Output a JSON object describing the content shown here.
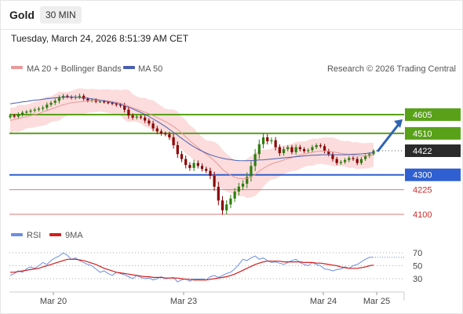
{
  "header": {
    "symbol": "Gold",
    "timeframe": "30 MIN",
    "datetime": "Tuesday, March 24, 2026 8:51:39 AM CET"
  },
  "legend": {
    "ma20_label": "MA 20 + Bollinger Bands",
    "ma50_label": "MA 50",
    "credit": "Research © 2026 Trading Central"
  },
  "rsi_legend": {
    "rsi_label": "RSI",
    "ma_label": "9MA"
  },
  "colors": {
    "up_candle": "#2e7d0e",
    "down_candle": "#8b0000",
    "bollinger_fill": "#fcd6d6",
    "ma20": "#e89a9a",
    "ma50": "#4a5fb0",
    "green_level": "#5aa11a",
    "blue_level": "#2f5fd0",
    "red_level": "#e07a7a",
    "current_price": "#2a2a2a",
    "arrow": "#2f64b4",
    "rsi": "#6b8ee0",
    "rsi_ma": "#d21e1e"
  },
  "chart_data": [
    {
      "type": "candlestick",
      "x_labels": [
        "Mar 20",
        "Mar 23",
        "Mar 24",
        "Mar 25"
      ],
      "levels": [
        {
          "value": 4605,
          "label": "4605",
          "style": "green-target"
        },
        {
          "value": 4510,
          "label": "4510",
          "style": "green"
        },
        {
          "value": 4422,
          "label": "4422",
          "style": "current"
        },
        {
          "value": 4300,
          "label": "4300",
          "style": "blue-pivot"
        },
        {
          "value": 4225,
          "label": "4225",
          "style": "red"
        },
        {
          "value": 4100,
          "label": "4100",
          "style": "red"
        }
      ],
      "close": [
        4600,
        4595,
        4605,
        4615,
        4620,
        4625,
        4630,
        4635,
        4640,
        4655,
        4665,
        4675,
        4690,
        4700,
        4695,
        4690,
        4695,
        4700,
        4685,
        4675,
        4680,
        4670,
        4672,
        4668,
        4665,
        4660,
        4655,
        4650,
        4630,
        4600,
        4590,
        4595,
        4590,
        4575,
        4560,
        4535,
        4520,
        4510,
        4505,
        4490,
        4450,
        4405,
        4380,
        4350,
        4335,
        4360,
        4345,
        4330,
        4320,
        4295,
        4240,
        4170,
        4120,
        4150,
        4180,
        4215,
        4240,
        4255,
        4290,
        4345,
        4405,
        4455,
        4490,
        4470,
        4475,
        4440,
        4410,
        4430,
        4440,
        4415,
        4440,
        4430,
        4420,
        4425,
        4440,
        4450,
        4445,
        4420,
        4405,
        4380,
        4360,
        4365,
        4375,
        4385,
        4380,
        4360,
        4380,
        4395,
        4405,
        4422
      ],
      "volatility": [
        12,
        10,
        14,
        12,
        10,
        11,
        12,
        12,
        14,
        15,
        12,
        14,
        16,
        12,
        10,
        10,
        12,
        14,
        12,
        10,
        10,
        9,
        8,
        9,
        10,
        10,
        12,
        12,
        18,
        20,
        14,
        12,
        12,
        16,
        15,
        18,
        16,
        14,
        12,
        16,
        22,
        24,
        20,
        22,
        18,
        20,
        16,
        16,
        14,
        20,
        26,
        30,
        28,
        26,
        24,
        22,
        24,
        22,
        28,
        30,
        32,
        30,
        26,
        20,
        18,
        20,
        18,
        16,
        14,
        14,
        16,
        14,
        12,
        12,
        14,
        12,
        12,
        14,
        14,
        16,
        14,
        12,
        12,
        14,
        12,
        14,
        12,
        12,
        12,
        10
      ],
      "ma20": [
        4575,
        4580,
        4585,
        4590,
        4595,
        4600,
        4605,
        4610,
        4618,
        4625,
        4633,
        4640,
        4648,
        4655,
        4660,
        4665,
        4668,
        4670,
        4672,
        4674,
        4676,
        4676,
        4676,
        4675,
        4673,
        4670,
        4668,
        4664,
        4656,
        4648,
        4640,
        4633,
        4625,
        4617,
        4610,
        4600,
        4590,
        4580,
        4570,
        4558,
        4545,
        4530,
        4512,
        4492,
        4472,
        4455,
        4438,
        4420,
        4405,
        4390,
        4372,
        4350,
        4328,
        4312,
        4298,
        4288,
        4282,
        4280,
        4282,
        4290,
        4302,
        4318,
        4333,
        4345,
        4355,
        4362,
        4368,
        4375,
        4382,
        4388,
        4394,
        4400,
        4405,
        4410,
        4414,
        4418,
        4420,
        4421,
        4420,
        4416,
        4413,
        4409,
        4406,
        4403,
        4400,
        4397,
        4396,
        4396,
        4398,
        4402
      ],
      "ma50": [
        4660,
        4663,
        4666,
        4670,
        4672,
        4675,
        4678,
        4680,
        4683,
        4686,
        4688,
        4690,
        4692,
        4693,
        4694,
        4694,
        4693,
        4692,
        4690,
        4688,
        4685,
        4682,
        4678,
        4675,
        4671,
        4667,
        4662,
        4657,
        4650,
        4642,
        4634,
        4625,
        4616,
        4606,
        4595,
        4583,
        4571,
        4558,
        4545,
        4530,
        4515,
        4500,
        4485,
        4470,
        4455,
        4442,
        4430,
        4420,
        4410,
        4402,
        4395,
        4389,
        4384,
        4380,
        4377,
        4374,
        4372,
        4371,
        4371,
        4372,
        4373,
        4375,
        4376,
        4378,
        4380,
        4382,
        4384,
        4386,
        4388,
        4390,
        4392,
        4394,
        4396,
        4398,
        4399,
        4400,
        4401,
        4402,
        4402,
        4402,
        4402,
        4402,
        4402,
        4403,
        4404,
        4405,
        4406,
        4408,
        4410,
        4412
      ],
      "projection": {
        "from": 4422,
        "to": 4605
      }
    },
    {
      "type": "line",
      "name": "RSI",
      "x_labels": [
        "Mar 20",
        "Mar 23",
        "Mar 24",
        "Mar 25"
      ],
      "ylim": [
        10,
        80
      ],
      "y_ticks": [
        70,
        50,
        30
      ],
      "series": [
        {
          "name": "RSI",
          "values": [
            35,
            38,
            42,
            40,
            45,
            48,
            46,
            50,
            55,
            52,
            58,
            62,
            65,
            70,
            66,
            60,
            62,
            58,
            55,
            52,
            50,
            45,
            40,
            42,
            38,
            35,
            40,
            38,
            36,
            33,
            30,
            35,
            32,
            30,
            31,
            28,
            30,
            33,
            30,
            31,
            32,
            25,
            28,
            30,
            26,
            30,
            29,
            30,
            28,
            33,
            35,
            32,
            35,
            38,
            40,
            45,
            52,
            60,
            58,
            62,
            65,
            60,
            62,
            58,
            55,
            56,
            54,
            52,
            55,
            58,
            60,
            55,
            52,
            50,
            55,
            52,
            50,
            45,
            44,
            42,
            44,
            45,
            48,
            46,
            50,
            52,
            56,
            60,
            63,
            63
          ]
        },
        {
          "name": "9MA",
          "values": [
            40,
            40,
            41,
            42,
            43,
            44,
            45,
            46,
            48,
            50,
            52,
            54,
            56,
            58,
            60,
            60,
            60,
            59,
            58,
            56,
            54,
            52,
            49,
            46,
            44,
            42,
            40,
            39,
            38,
            37,
            36,
            35,
            34,
            33,
            33,
            32,
            32,
            32,
            31,
            31,
            31,
            31,
            30,
            29,
            29,
            28,
            28,
            28,
            28,
            29,
            30,
            31,
            32,
            33,
            35,
            37,
            40,
            43,
            46,
            49,
            52,
            54,
            56,
            57,
            57,
            57,
            57,
            56,
            56,
            56,
            56,
            56,
            55,
            55,
            55,
            54,
            54,
            53,
            52,
            51,
            50,
            48,
            47,
            46,
            46,
            46,
            47,
            48,
            50,
            51
          ]
        }
      ]
    }
  ]
}
